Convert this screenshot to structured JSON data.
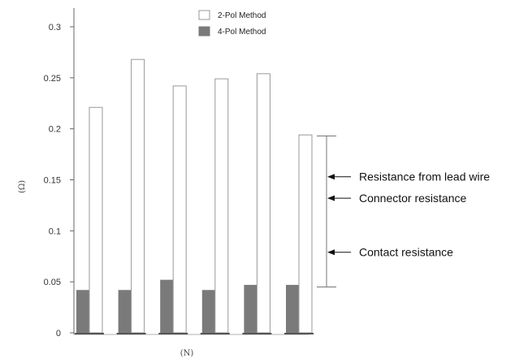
{
  "chart_data": {
    "type": "bar",
    "title": "",
    "xlabel": "(N)",
    "ylabel": "(Ω)",
    "ylim": [
      0,
      0.3
    ],
    "yticks": [
      "0",
      "0.05",
      "0.1",
      "0.15",
      "0.2",
      "0.25",
      "0.3"
    ],
    "ytick_values": [
      0,
      0.05,
      0.1,
      0.15,
      0.2,
      0.25,
      0.3
    ],
    "categories": [
      "",
      "",
      "",
      "",
      "",
      ""
    ],
    "series": [
      {
        "name": "2-Pol Method",
        "values": [
          0.221,
          0.268,
          0.242,
          0.249,
          0.254,
          0.194
        ],
        "color": "#ffffff",
        "stroke": "#999999"
      },
      {
        "name": "4-Pol Method",
        "values": [
          0.042,
          0.042,
          0.052,
          0.042,
          0.047,
          0.047
        ],
        "color": "#7a7a7a",
        "stroke": "#7a7a7a"
      }
    ],
    "legend_position": "top-center",
    "grid": false,
    "annotations": [
      {
        "text": "Resistance from lead wire",
        "y": 0.153
      },
      {
        "text": "Connector resistance",
        "y": 0.132
      },
      {
        "text": "Contact resistance",
        "y": 0.079
      }
    ],
    "bracket_range": [
      0.045,
      0.193
    ]
  }
}
